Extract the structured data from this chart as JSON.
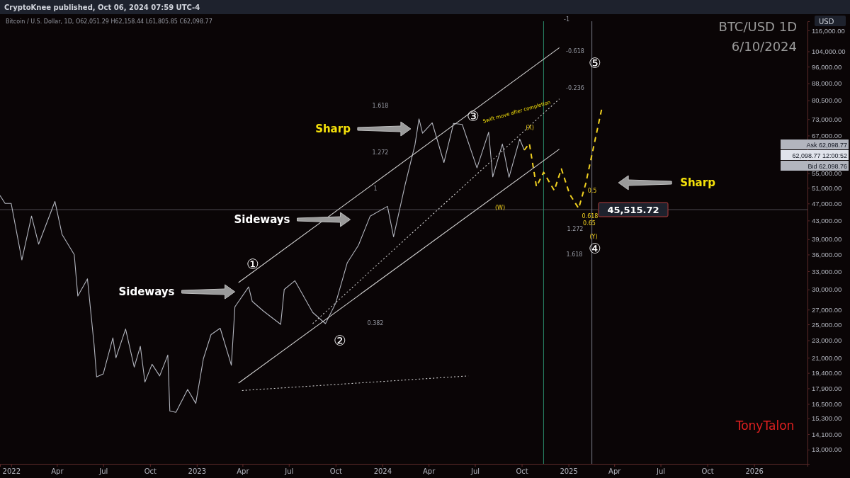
{
  "chart_data": {
    "type": "line",
    "title": "BTC/USD 1D",
    "subtitle": "6/10/2024",
    "ylabel": "USD",
    "log": true,
    "grid": false,
    "xlim": [
      "2021-12-10",
      "2026-04-16"
    ],
    "xticks": [
      {
        "value": "2022-01-01",
        "label": "2022"
      },
      {
        "value": "2022-04-01",
        "label": "Apr"
      },
      {
        "value": "2022-07-01",
        "label": "Jul"
      },
      {
        "value": "2022-10-01",
        "label": "Oct"
      },
      {
        "value": "2023-01-01",
        "label": "2023"
      },
      {
        "value": "2023-04-01",
        "label": "Apr"
      },
      {
        "value": "2023-07-01",
        "label": "Jul"
      },
      {
        "value": "2023-10-01",
        "label": "Oct"
      },
      {
        "value": "2024-01-01",
        "label": "2024"
      },
      {
        "value": "2024-04-01",
        "label": "Apr"
      },
      {
        "value": "2024-07-01",
        "label": "Jul"
      },
      {
        "value": "2024-10-01",
        "label": "Oct"
      },
      {
        "value": "2025-01-01",
        "label": "2025"
      },
      {
        "value": "2025-04-01",
        "label": "Apr"
      },
      {
        "value": "2025-07-01",
        "label": "Jul"
      },
      {
        "value": "2025-10-01",
        "label": "Oct"
      },
      {
        "value": "2026-01-01",
        "label": "2026"
      }
    ],
    "ylim": [
      12070,
      121700
    ],
    "yticks": [
      {
        "value": 13000,
        "label": "13,000.00"
      },
      {
        "value": 14100,
        "label": "14,100.00"
      },
      {
        "value": 15300,
        "label": "15,300.00"
      },
      {
        "value": 16500,
        "label": "16,500.00"
      },
      {
        "value": 17900,
        "label": "17,900.00"
      },
      {
        "value": 19400,
        "label": "19,400.00"
      },
      {
        "value": 21000,
        "label": "21,000.00"
      },
      {
        "value": 23000,
        "label": "23,000.00"
      },
      {
        "value": 25000,
        "label": "25,000.00"
      },
      {
        "value": 27000,
        "label": "27,000.00"
      },
      {
        "value": 30000,
        "label": "30,000.00"
      },
      {
        "value": 33000,
        "label": "33,000.00"
      },
      {
        "value": 36000,
        "label": "36,000.00"
      },
      {
        "value": 39000,
        "label": "39,000.00"
      },
      {
        "value": 43000,
        "label": "43,000.00"
      },
      {
        "value": 47000,
        "label": "47,000.00"
      },
      {
        "value": 51000,
        "label": "51,000.00"
      },
      {
        "value": 55000,
        "label": "55,000.00"
      },
      {
        "value": 67000,
        "label": "67,000.00"
      },
      {
        "value": 73000,
        "label": "73,000.00"
      },
      {
        "value": 80500,
        "label": "80,500.00"
      },
      {
        "value": 88000,
        "label": "88,000.00"
      },
      {
        "value": 96000,
        "label": "96,000.00"
      },
      {
        "value": 104000,
        "label": "104,000.00"
      },
      {
        "value": 116000,
        "label": "116,000.00"
      }
    ],
    "series": [
      {
        "color": "#b2b5be",
        "line_style": "solid",
        "x": [
          "2021-12-10",
          "2021-12-20",
          "2022-01-01",
          "2022-01-22",
          "2022-02-10",
          "2022-02-24",
          "2022-03-28",
          "2022-04-11",
          "2022-05-05",
          "2022-05-12",
          "2022-05-31",
          "2022-06-13",
          "2022-06-18",
          "2022-07-01",
          "2022-07-20",
          "2022-07-26",
          "2022-08-14",
          "2022-08-31",
          "2022-09-12",
          "2022-09-21",
          "2022-10-05",
          "2022-10-20",
          "2022-11-05",
          "2022-11-09",
          "2022-11-21",
          "2022-12-14",
          "2022-12-30",
          "2023-01-14",
          "2023-01-29",
          "2023-02-16",
          "2023-03-10",
          "2023-03-17",
          "2023-04-13",
          "2023-04-20",
          "2023-05-12",
          "2023-06-15",
          "2023-06-22",
          "2023-07-13",
          "2023-08-17",
          "2023-09-11",
          "2023-10-01",
          "2023-10-24",
          "2023-11-15",
          "2023-12-08",
          "2024-01-11",
          "2024-01-23",
          "2024-02-15",
          "2024-03-05",
          "2024-03-13",
          "2024-03-20",
          "2024-04-08",
          "2024-05-01",
          "2024-05-20",
          "2024-06-06",
          "2024-07-05",
          "2024-07-28",
          "2024-08-05",
          "2024-08-24",
          "2024-09-06",
          "2024-09-27",
          "2024-10-06"
        ],
        "values": [
          49000,
          47000,
          47000,
          35000,
          44000,
          38000,
          47500,
          40000,
          36000,
          29000,
          31700,
          22500,
          19000,
          19300,
          23300,
          21000,
          24400,
          20000,
          22300,
          18500,
          20300,
          19100,
          21300,
          15900,
          15800,
          17800,
          16550,
          20900,
          23700,
          24500,
          20200,
          27400,
          30400,
          28200,
          26800,
          25000,
          30000,
          31400,
          26600,
          25100,
          27900,
          34500,
          37800,
          44000,
          46300,
          39500,
          52000,
          63800,
          73100,
          67800,
          71600,
          58200,
          71400,
          71000,
          56600,
          68200,
          54000,
          64100,
          53900,
          65800,
          62098
        ]
      },
      {
        "color": "#f0d020",
        "line_style": "dashed",
        "x": [
          "2024-10-06",
          "2024-10-16",
          "2024-10-30",
          "2024-11-13",
          "2024-12-04",
          "2024-12-18",
          "2025-01-03",
          "2025-01-21",
          "2025-02-04",
          "2025-03-07"
        ],
        "values": [
          62098,
          64300,
          51300,
          55300,
          50300,
          56300,
          49400,
          45800,
          52200,
          76700
        ]
      },
      {
        "color": "#d0d0d0",
        "line_style": "solid",
        "x": [
          "2023-03-24",
          "2024-12-14"
        ],
        "values": [
          31100,
          106000
        ]
      },
      {
        "color": "#d0d0d0",
        "line_style": "solid",
        "x": [
          "2023-03-24",
          "2024-12-14"
        ],
        "values": [
          18400,
          62400
        ]
      },
      {
        "color": "#d0d0d0",
        "line_style": "dotted",
        "x": [
          "2023-08-17",
          "2024-12-14"
        ],
        "values": [
          25100,
          81100
        ]
      },
      {
        "color": "#d0d0d0",
        "line_style": "dotted",
        "x": [
          "2023-03-31",
          "2024-06-18"
        ],
        "values": [
          17700,
          19100
        ]
      }
    ],
    "ref_lines": [
      {
        "axis": "y",
        "value": 45515.72,
        "label": "45,515.72",
        "color": "#9598a1"
      },
      {
        "axis": "x",
        "value": "2024-11-13",
        "color": "#2a8a6a"
      },
      {
        "axis": "x",
        "value": "2025-02-16",
        "color": "#787b86"
      }
    ],
    "annotations": [
      "Sharp",
      "Sideways",
      "Sideways",
      "Sharp",
      "Swift move after completion",
      "①",
      "②",
      "③",
      "④",
      "⑤",
      "-1",
      "-0.618",
      "-0.236",
      "1.618",
      "1.272",
      "1",
      "0.382",
      "0.5",
      "0.618",
      "0.65",
      "1.272",
      "1.618",
      "(W)",
      "(X)",
      "(Y)",
      "CryptoKnee published, Oct 06, 2024 07:59 UTC-4",
      "Bitcoin / U.S. Dollar, 1D, O62,051.29 H62,158.44 L61,805.85 C62,098.77",
      "Ask 62,098.77",
      "62,098.77 12:00:52",
      "Bid 62,098.76",
      "TonyTalon"
    ]
  }
}
